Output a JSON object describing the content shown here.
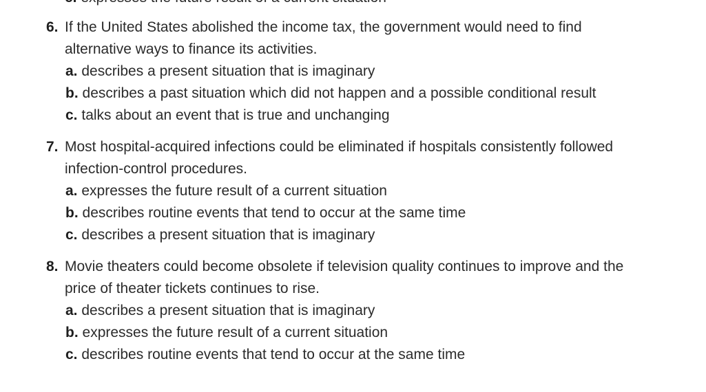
{
  "cut_off_line": {
    "label": "c.",
    "text": "expresses the future result of a current situation"
  },
  "questions": [
    {
      "number": "6.",
      "lines": [
        "If the United States abolished the income tax, the government would need to find",
        "alternative ways to finance its activities."
      ],
      "options": [
        {
          "label": "a.",
          "text": "describes a present situation that is imaginary"
        },
        {
          "label": "b.",
          "text": "describes a past situation which did not happen and a possible conditional result"
        },
        {
          "label": "c.",
          "text": "talks about an event that is true and unchanging"
        }
      ]
    },
    {
      "number": "7.",
      "lines": [
        "Most hospital-acquired infections could be eliminated if hospitals consistently followed",
        "infection-control procedures."
      ],
      "options": [
        {
          "label": "a.",
          "text": "expresses the future result of a current situation"
        },
        {
          "label": "b.",
          "text": "describes routine events that tend to occur at the same time"
        },
        {
          "label": "c.",
          "text": "describes a present situation that is imaginary"
        }
      ]
    },
    {
      "number": "8.",
      "lines": [
        "Movie theaters could become obsolete if television quality continues to improve and the",
        "price of theater tickets continues to rise."
      ],
      "options": [
        {
          "label": "a.",
          "text": "describes a present situation that is imaginary"
        },
        {
          "label": "b.",
          "text": "expresses the future result of a current situation"
        },
        {
          "label": "c.",
          "text": "describes routine events that tend to occur at the same time"
        }
      ]
    }
  ]
}
